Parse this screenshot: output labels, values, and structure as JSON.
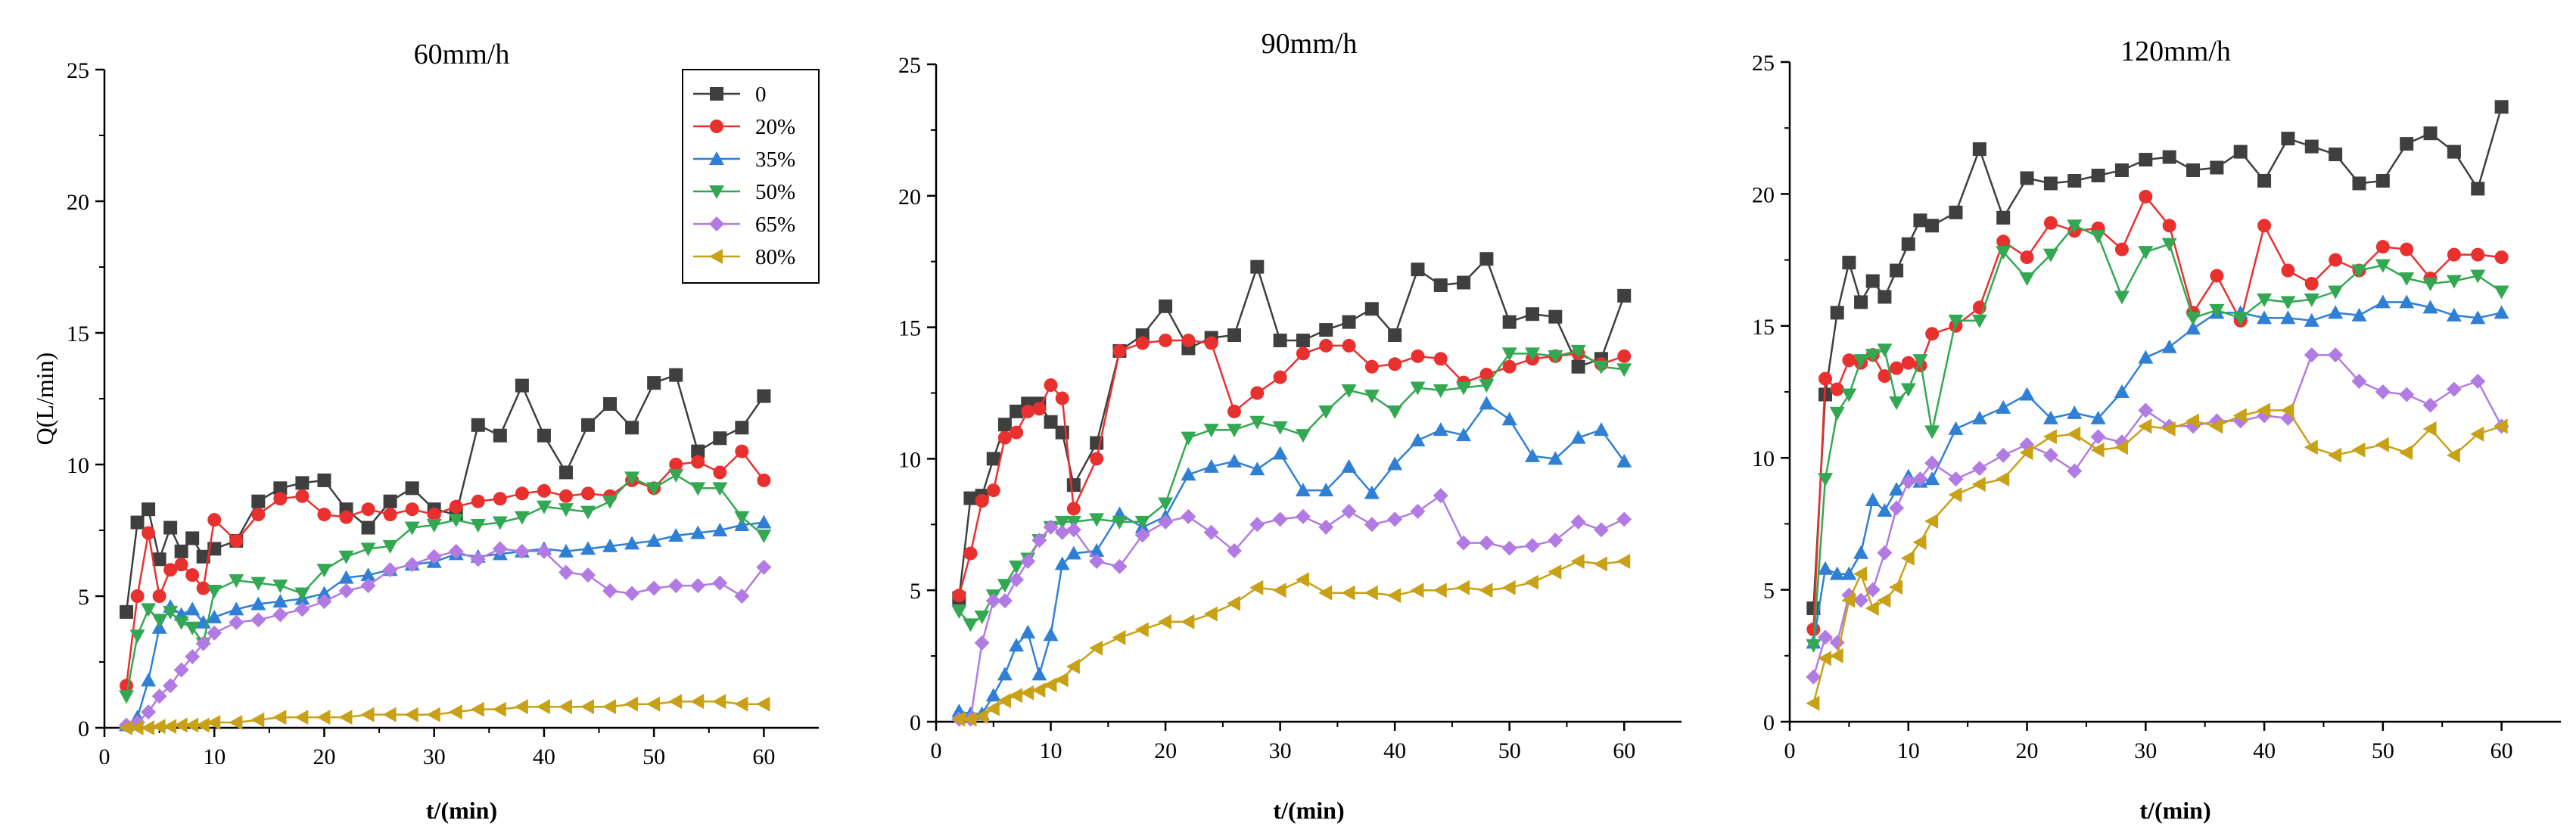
{
  "chart_data": [
    {
      "type": "line",
      "title": "60mm/h",
      "xlabel": "t/(min)",
      "ylabel": "Q(L/min)",
      "xlim": [
        0,
        65
      ],
      "ylim": [
        0,
        25
      ],
      "xticks": [
        0,
        10,
        20,
        30,
        40,
        50,
        60
      ],
      "yticks": [
        0,
        5,
        10,
        15,
        20,
        25
      ],
      "show_legend": true,
      "legend_position": "top-right",
      "x": [
        2,
        3,
        4,
        5,
        6,
        7,
        8,
        9,
        10,
        12,
        14,
        16,
        18,
        20,
        22,
        24,
        26,
        28,
        30,
        32,
        34,
        36,
        38,
        40,
        42,
        44,
        46,
        48,
        50,
        52,
        54,
        56,
        58,
        60
      ],
      "series": [
        {
          "name": "0",
          "color": "#3f3f3f",
          "marker": "square",
          "values": [
            4.4,
            7.8,
            8.3,
            6.4,
            7.6,
            6.7,
            7.2,
            6.5,
            6.8,
            7.1,
            8.6,
            9.1,
            9.3,
            9.4,
            8.3,
            7.6,
            8.6,
            9.1,
            8.3,
            8.1,
            11.5,
            11.1,
            13.0,
            11.1,
            9.7,
            11.5,
            12.3,
            11.4,
            13.1,
            13.4,
            10.5,
            11.0,
            11.4,
            12.6
          ]
        },
        {
          "name": "20%",
          "color": "#e8312f",
          "marker": "circle",
          "values": [
            1.6,
            5.0,
            7.4,
            5.0,
            6.0,
            6.2,
            5.8,
            5.3,
            7.9,
            7.1,
            8.1,
            8.7,
            8.8,
            8.1,
            8.0,
            8.3,
            8.1,
            8.3,
            8.1,
            8.4,
            8.6,
            8.7,
            8.9,
            9.0,
            8.8,
            8.9,
            8.8,
            9.4,
            9.1,
            10.0,
            10.1,
            9.7,
            10.5,
            9.4
          ]
        },
        {
          "name": "35%",
          "color": "#2f80d5",
          "marker": "triangle-up",
          "values": [
            0.1,
            0.4,
            1.8,
            3.8,
            4.6,
            4.3,
            4.5,
            4.0,
            4.2,
            4.5,
            4.7,
            4.8,
            4.9,
            5.1,
            5.7,
            5.8,
            6.0,
            6.2,
            6.3,
            6.6,
            6.5,
            6.6,
            6.7,
            6.8,
            6.7,
            6.8,
            6.9,
            7.0,
            7.1,
            7.3,
            7.4,
            7.5,
            7.7,
            7.8
          ]
        },
        {
          "name": "50%",
          "color": "#33a852",
          "marker": "triangle-down",
          "values": [
            1.2,
            3.5,
            4.5,
            4.1,
            4.4,
            4.0,
            3.8,
            3.2,
            5.2,
            5.6,
            5.5,
            5.4,
            5.1,
            6.0,
            6.5,
            6.8,
            6.9,
            7.6,
            7.7,
            7.9,
            7.7,
            7.8,
            8.0,
            8.4,
            8.3,
            8.2,
            8.6,
            9.5,
            9.1,
            9.6,
            9.1,
            9.1,
            8.0,
            7.3
          ]
        },
        {
          "name": "65%",
          "color": "#b27be3",
          "marker": "diamond",
          "values": [
            0.1,
            0.2,
            0.6,
            1.2,
            1.6,
            2.2,
            2.7,
            3.2,
            3.6,
            4.0,
            4.1,
            4.3,
            4.5,
            4.8,
            5.2,
            5.4,
            6.0,
            6.2,
            6.5,
            6.7,
            6.4,
            6.8,
            6.7,
            6.7,
            5.9,
            5.8,
            5.2,
            5.1,
            5.3,
            5.4,
            5.4,
            5.5,
            5.0,
            6.1
          ]
        },
        {
          "name": "80%",
          "color": "#c8a116",
          "marker": "triangle-left",
          "values": [
            0.0,
            0.0,
            0.0,
            0.05,
            0.05,
            0.1,
            0.1,
            0.1,
            0.2,
            0.2,
            0.3,
            0.4,
            0.4,
            0.4,
            0.4,
            0.5,
            0.5,
            0.5,
            0.5,
            0.6,
            0.7,
            0.7,
            0.8,
            0.8,
            0.8,
            0.8,
            0.8,
            0.9,
            0.9,
            1.0,
            1.0,
            1.0,
            0.9,
            0.9
          ]
        }
      ]
    },
    {
      "type": "line",
      "title": "90mm/h",
      "xlabel": "t/(min)",
      "ylabel": "",
      "xlim": [
        0,
        65
      ],
      "ylim": [
        0,
        25
      ],
      "xticks": [
        0,
        10,
        20,
        30,
        40,
        50,
        60
      ],
      "yticks": [
        0,
        5,
        10,
        15,
        20,
        25
      ],
      "show_legend": false,
      "legend_position": "",
      "x": [
        2,
        3,
        4,
        5,
        6,
        7,
        8,
        9,
        10,
        11,
        12,
        14,
        16,
        18,
        20,
        22,
        24,
        26,
        28,
        30,
        32,
        34,
        36,
        38,
        40,
        42,
        44,
        46,
        48,
        50,
        52,
        54,
        56,
        58,
        60
      ],
      "series": [
        {
          "name": "0",
          "color": "#3f3f3f",
          "marker": "square",
          "values": [
            4.7,
            8.5,
            8.6,
            10.0,
            11.3,
            11.8,
            12.1,
            12.1,
            11.4,
            11.0,
            9.0,
            10.6,
            14.1,
            14.7,
            15.8,
            14.2,
            14.6,
            14.7,
            17.3,
            14.5,
            14.5,
            14.9,
            15.2,
            15.7,
            14.7,
            17.2,
            16.6,
            16.7,
            17.6,
            15.2,
            15.5,
            15.4,
            13.5,
            13.8,
            16.2
          ]
        },
        {
          "name": "20%",
          "color": "#e8312f",
          "marker": "circle",
          "values": [
            4.8,
            6.4,
            8.4,
            8.8,
            10.8,
            11.0,
            11.8,
            11.9,
            12.8,
            12.3,
            8.1,
            10.0,
            14.1,
            14.4,
            14.5,
            14.5,
            14.4,
            11.8,
            12.5,
            13.1,
            14.0,
            14.3,
            14.3,
            13.5,
            13.6,
            13.9,
            13.8,
            12.9,
            13.2,
            13.5,
            13.8,
            13.9,
            14.0,
            13.6,
            13.9
          ]
        },
        {
          "name": "35%",
          "color": "#2f80d5",
          "marker": "triangle-up",
          "values": [
            0.4,
            0.3,
            0.3,
            1.0,
            1.8,
            2.9,
            3.4,
            1.8,
            3.3,
            6.0,
            6.4,
            6.5,
            7.9,
            7.4,
            7.8,
            9.4,
            9.7,
            9.9,
            9.6,
            10.2,
            8.8,
            8.8,
            9.7,
            8.7,
            9.8,
            10.7,
            11.1,
            10.9,
            12.1,
            11.5,
            10.1,
            10.0,
            10.8,
            11.1,
            9.9
          ]
        },
        {
          "name": "50%",
          "color": "#33a852",
          "marker": "triangle-down",
          "values": [
            4.2,
            3.7,
            4.0,
            4.8,
            5.2,
            5.9,
            6.2,
            6.9,
            7.4,
            7.6,
            7.6,
            7.7,
            7.6,
            7.6,
            8.3,
            10.8,
            11.1,
            11.1,
            11.4,
            11.2,
            10.9,
            11.8,
            12.6,
            12.4,
            11.8,
            12.7,
            12.6,
            12.7,
            12.8,
            14.0,
            14.0,
            13.9,
            14.1,
            13.5,
            13.4
          ]
        },
        {
          "name": "65%",
          "color": "#b27be3",
          "marker": "diamond",
          "values": [
            0.1,
            0.1,
            3.0,
            4.6,
            4.6,
            5.4,
            6.1,
            6.9,
            7.4,
            7.2,
            7.3,
            6.1,
            5.9,
            7.1,
            7.6,
            7.8,
            7.2,
            6.5,
            7.5,
            7.7,
            7.8,
            7.4,
            8.0,
            7.5,
            7.7,
            8.0,
            8.6,
            6.8,
            6.8,
            6.6,
            6.7,
            6.9,
            7.6,
            7.3,
            7.7
          ]
        },
        {
          "name": "80%",
          "color": "#c8a116",
          "marker": "triangle-left",
          "values": [
            0.1,
            0.1,
            0.2,
            0.5,
            0.8,
            1.0,
            1.1,
            1.2,
            1.4,
            1.6,
            2.1,
            2.8,
            3.2,
            3.5,
            3.8,
            3.8,
            4.1,
            4.5,
            5.1,
            5.0,
            5.4,
            4.9,
            4.9,
            4.9,
            4.8,
            5.0,
            5.0,
            5.1,
            5.0,
            5.1,
            5.3,
            5.7,
            6.1,
            6.0,
            6.1
          ]
        }
      ]
    },
    {
      "type": "line",
      "title": "120mm/h",
      "xlabel": "t/(min)",
      "ylabel": "",
      "xlim": [
        0,
        65
      ],
      "ylim": [
        0,
        25
      ],
      "xticks": [
        0,
        10,
        20,
        30,
        40,
        50,
        60
      ],
      "yticks": [
        0,
        5,
        10,
        15,
        20,
        25
      ],
      "show_legend": false,
      "legend_position": "",
      "x": [
        2,
        3,
        4,
        5,
        6,
        7,
        8,
        9,
        10,
        11,
        12,
        14,
        16,
        18,
        20,
        22,
        24,
        26,
        28,
        30,
        32,
        34,
        36,
        38,
        40,
        42,
        44,
        46,
        48,
        50,
        52,
        54,
        56,
        58,
        60
      ],
      "series": [
        {
          "name": "0",
          "color": "#3f3f3f",
          "marker": "square",
          "values": [
            4.3,
            12.4,
            15.5,
            17.4,
            15.9,
            16.7,
            16.1,
            17.1,
            18.1,
            19.0,
            18.8,
            19.3,
            21.7,
            19.1,
            20.6,
            20.4,
            20.5,
            20.7,
            20.9,
            21.3,
            21.4,
            20.9,
            21.0,
            21.6,
            20.5,
            22.1,
            21.8,
            21.5,
            20.4,
            20.5,
            21.9,
            22.3,
            21.6,
            20.2,
            23.3
          ]
        },
        {
          "name": "20%",
          "color": "#e8312f",
          "marker": "circle",
          "values": [
            3.5,
            13.0,
            12.6,
            13.7,
            13.6,
            13.9,
            13.1,
            13.4,
            13.6,
            13.5,
            14.7,
            15.0,
            15.7,
            18.2,
            17.6,
            18.9,
            18.6,
            18.7,
            17.9,
            19.9,
            18.8,
            15.5,
            16.9,
            15.2,
            18.8,
            17.1,
            16.6,
            17.5,
            17.1,
            18.0,
            17.9,
            16.8,
            17.7,
            17.7,
            17.6
          ]
        },
        {
          "name": "35%",
          "color": "#2f80d5",
          "marker": "triangle-up",
          "values": [
            3.0,
            5.8,
            5.6,
            5.6,
            6.4,
            8.4,
            8.0,
            8.8,
            9.3,
            9.1,
            9.2,
            11.1,
            11.5,
            11.9,
            12.4,
            11.5,
            11.7,
            11.5,
            12.5,
            13.8,
            14.2,
            14.9,
            15.5,
            15.5,
            15.3,
            15.3,
            15.2,
            15.5,
            15.4,
            15.9,
            15.9,
            15.7,
            15.4,
            15.3,
            15.5
          ]
        },
        {
          "name": "50%",
          "color": "#33a852",
          "marker": "triangle-down",
          "values": [
            2.9,
            9.2,
            11.7,
            12.4,
            13.7,
            13.9,
            14.1,
            12.1,
            12.6,
            13.7,
            11.0,
            15.2,
            15.2,
            17.8,
            16.8,
            17.7,
            18.8,
            18.4,
            16.1,
            17.8,
            18.1,
            15.3,
            15.6,
            15.3,
            16.0,
            15.9,
            16.0,
            16.3,
            17.1,
            17.3,
            16.8,
            16.6,
            16.7,
            16.9,
            16.3
          ]
        },
        {
          "name": "65%",
          "color": "#b27be3",
          "marker": "diamond",
          "values": [
            1.7,
            3.2,
            3.0,
            4.8,
            4.6,
            5.0,
            6.4,
            8.1,
            9.1,
            9.2,
            9.8,
            9.2,
            9.6,
            10.1,
            10.5,
            10.1,
            9.5,
            10.8,
            10.6,
            11.8,
            11.2,
            11.2,
            11.4,
            11.4,
            11.6,
            11.5,
            13.9,
            13.9,
            12.9,
            12.5,
            12.4,
            12.0,
            12.6,
            12.9,
            11.2
          ]
        },
        {
          "name": "80%",
          "color": "#c8a116",
          "marker": "triangle-left",
          "values": [
            0.7,
            2.4,
            2.5,
            4.6,
            5.6,
            4.3,
            4.6,
            5.1,
            6.2,
            6.8,
            7.6,
            8.6,
            9.0,
            9.2,
            10.2,
            10.8,
            10.9,
            10.3,
            10.4,
            11.2,
            11.1,
            11.4,
            11.2,
            11.6,
            11.8,
            11.8,
            10.4,
            10.1,
            10.3,
            10.5,
            10.2,
            11.1,
            10.1,
            10.9,
            11.2
          ]
        }
      ]
    }
  ]
}
